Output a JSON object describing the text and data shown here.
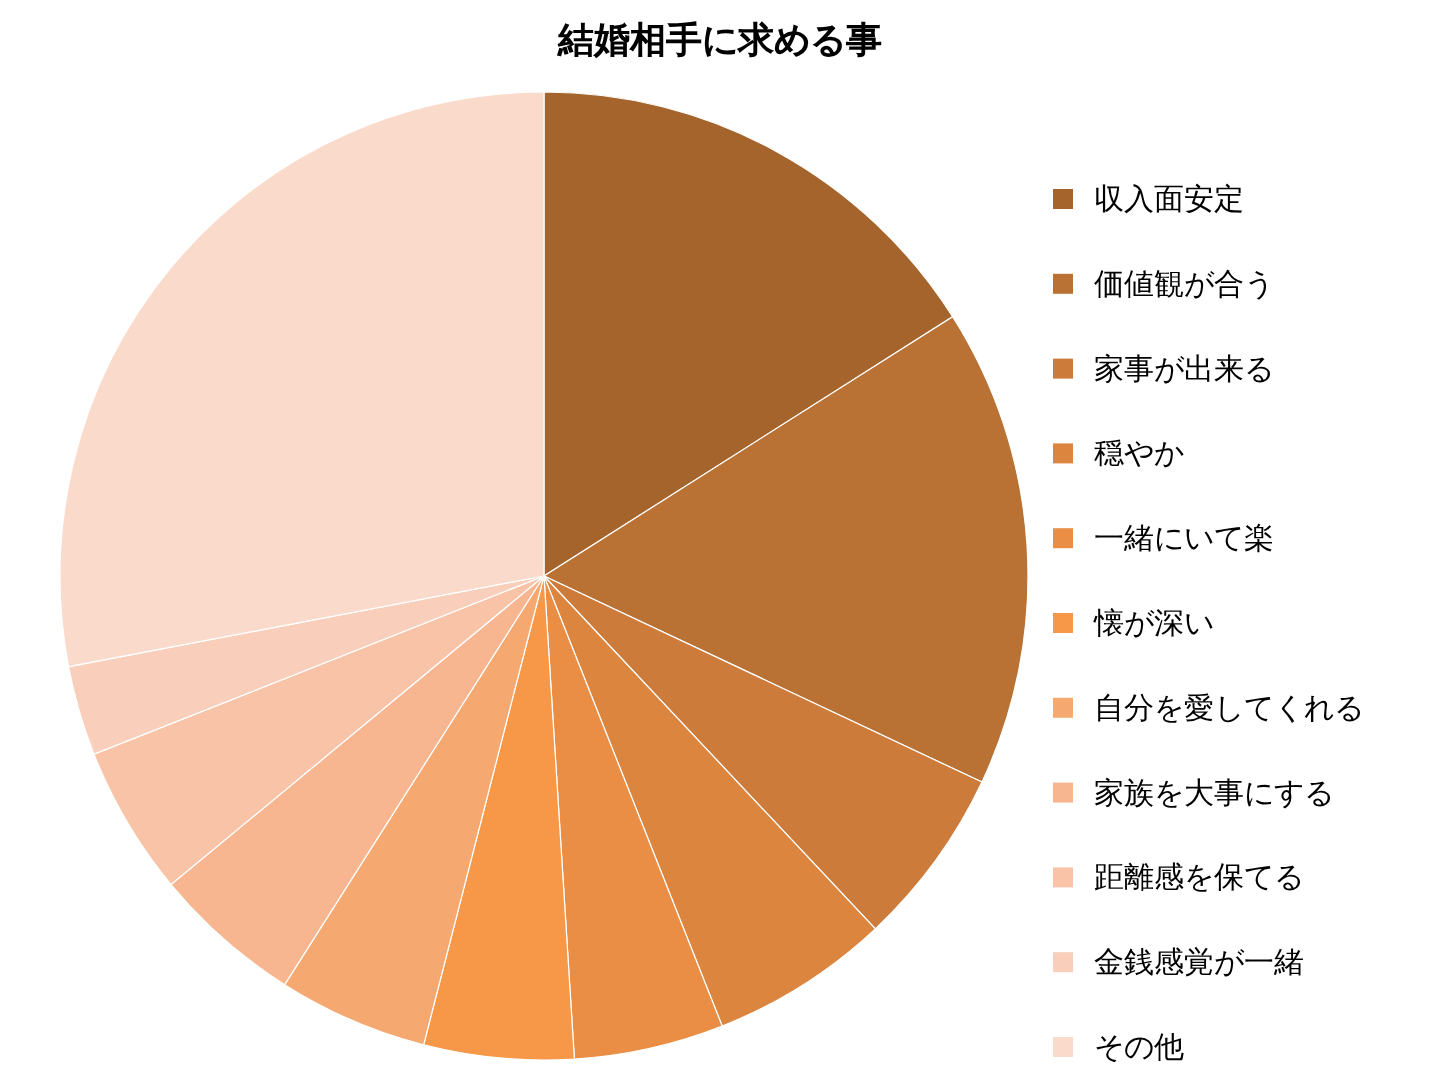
{
  "chart_data": {
    "type": "pie",
    "title": "結婚相手に求める事",
    "categories": [
      "収入面安定",
      "価値観が合う",
      "家事が出来る",
      "穏やか",
      "一緒にいて楽",
      "懐が深い",
      "自分を愛してくれる",
      "家族を大事にする",
      "距離感を保てる",
      "金銭感覚が一緒",
      "その他"
    ],
    "values": [
      16,
      16,
      6,
      6,
      5,
      5,
      5,
      5,
      5,
      3,
      28
    ],
    "colors": [
      "#a5642c",
      "#b97134",
      "#cc7b3a",
      "#dc853f",
      "#e98e44",
      "#f69847",
      "#f6a871",
      "#f7b690",
      "#f8c3a7",
      "#f9cfbb",
      "#fadacb"
    ],
    "legend": "right"
  }
}
